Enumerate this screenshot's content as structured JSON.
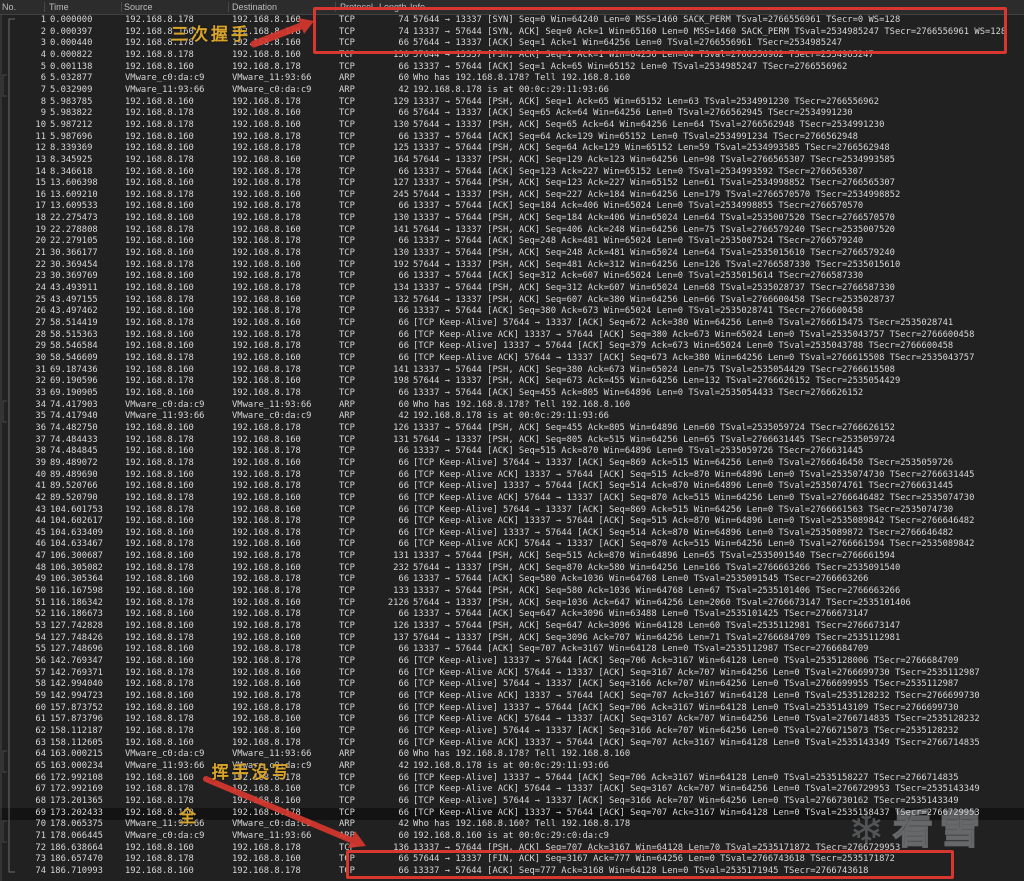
{
  "header": {
    "columns": [
      "No.",
      "Time",
      "Source",
      "Destination",
      "Protocol",
      "Length",
      "Info"
    ]
  },
  "selected_row_no": "69",
  "packets": [
    [
      "1",
      "0.000000",
      "192.168.8.178",
      "192.168.8.160",
      "TCP",
      "74",
      "57644 → 13337 [SYN] Seq=0 Win=64240 Len=0 MSS=1460 SACK_PERM TSval=2766556961 TSecr=0 WS=128"
    ],
    [
      "2",
      "0.000397",
      "192.168.8.160",
      "192.168.8.178",
      "TCP",
      "74",
      "13337 → 57644 [SYN, ACK] Seq=0 Ack=1 Win=65160 Len=0 MSS=1460 SACK_PERM TSval=2534985247 TSecr=2766556961 WS=128"
    ],
    [
      "3",
      "0.000440",
      "192.168.8.178",
      "192.168.8.160",
      "TCP",
      "66",
      "57644 → 13337 [ACK] Seq=1 Ack=1 Win=64256 Len=0 TSval=2766556961 TSecr=2534985247"
    ],
    [
      "4",
      "0.000822",
      "192.168.8.178",
      "192.168.8.160",
      "TCP",
      "130",
      "57644 → 13337 [PSH, ACK] Seq=1 Ack=1 Win=64256 Len=64 TSval=2766556962 TSecr=2534985247"
    ],
    [
      "5",
      "0.001138",
      "192.168.8.160",
      "192.168.8.178",
      "TCP",
      "66",
      "13337 → 57644 [ACK] Seq=1 Ack=65 Win=65152 Len=0 TSval=2534985247 TSecr=2766556962"
    ],
    [
      "6",
      "5.032877",
      "VMware_c0:da:c9",
      "VMware_11:93:66",
      "ARP",
      "60",
      "Who has 192.168.8.178? Tell 192.168.8.160"
    ],
    [
      "7",
      "5.032909",
      "VMware_11:93:66",
      "VMware_c0:da:c9",
      "ARP",
      "42",
      "192.168.8.178 is at 00:0c:29:11:93:66"
    ],
    [
      "8",
      "5.983785",
      "192.168.8.160",
      "192.168.8.178",
      "TCP",
      "129",
      "13337 → 57644 [PSH, ACK] Seq=1 Ack=65 Win=65152 Len=63 TSval=2534991230 TSecr=2766556962"
    ],
    [
      "9",
      "5.983822",
      "192.168.8.178",
      "192.168.8.160",
      "TCP",
      "66",
      "57644 → 13337 [ACK] Seq=65 Ack=64 Win=64256 Len=0 TSval=2766562945 TSecr=2534991230"
    ],
    [
      "10",
      "5.987212",
      "192.168.8.178",
      "192.168.8.160",
      "TCP",
      "130",
      "57644 → 13337 [PSH, ACK] Seq=65 Ack=64 Win=64256 Len=64 TSval=2766562948 TSecr=2534991230"
    ],
    [
      "11",
      "5.987696",
      "192.168.8.160",
      "192.168.8.178",
      "TCP",
      "66",
      "13337 → 57644 [ACK] Seq=64 Ack=129 Win=65152 Len=0 TSval=2534991234 TSecr=2766562948"
    ],
    [
      "12",
      "8.339369",
      "192.168.8.160",
      "192.168.8.178",
      "TCP",
      "125",
      "13337 → 57644 [PSH, ACK] Seq=64 Ack=129 Win=65152 Len=59 TSval=2534993585 TSecr=2766562948"
    ],
    [
      "13",
      "8.345925",
      "192.168.8.178",
      "192.168.8.160",
      "TCP",
      "164",
      "57644 → 13337 [PSH, ACK] Seq=129 Ack=123 Win=64256 Len=98 TSval=2766565307 TSecr=2534993585"
    ],
    [
      "14",
      "8.346618",
      "192.168.8.160",
      "192.168.8.178",
      "TCP",
      "66",
      "13337 → 57644 [ACK] Seq=123 Ack=227 Win=65152 Len=0 TSval=2534993592 TSecr=2766565307"
    ],
    [
      "15",
      "13.606398",
      "192.168.8.160",
      "192.168.8.178",
      "TCP",
      "127",
      "13337 → 57644 [PSH, ACK] Seq=123 Ack=227 Win=65152 Len=61 TSval=2534998852 TSecr=2766565307"
    ],
    [
      "16",
      "13.609210",
      "192.168.8.178",
      "192.168.8.160",
      "TCP",
      "245",
      "57644 → 13337 [PSH, ACK] Seq=227 Ack=184 Win=64256 Len=179 TSval=2766570570 TSecr=2534998852"
    ],
    [
      "17",
      "13.609533",
      "192.168.8.160",
      "192.168.8.178",
      "TCP",
      "66",
      "13337 → 57644 [ACK] Seq=184 Ack=406 Win=65024 Len=0 TSval=2534998855 TSecr=2766570570"
    ],
    [
      "18",
      "22.275473",
      "192.168.8.160",
      "192.168.8.178",
      "TCP",
      "130",
      "13337 → 57644 [PSH, ACK] Seq=184 Ack=406 Win=65024 Len=64 TSval=2535007520 TSecr=2766570570"
    ],
    [
      "19",
      "22.278808",
      "192.168.8.178",
      "192.168.8.160",
      "TCP",
      "141",
      "57644 → 13337 [PSH, ACK] Seq=406 Ack=248 Win=64256 Len=75 TSval=2766579240 TSecr=2535007520"
    ],
    [
      "20",
      "22.279105",
      "192.168.8.160",
      "192.168.8.178",
      "TCP",
      "66",
      "13337 → 57644 [ACK] Seq=248 Ack=481 Win=65024 Len=0 TSval=2535007524 TSecr=2766579240"
    ],
    [
      "21",
      "30.366177",
      "192.168.8.160",
      "192.168.8.178",
      "TCP",
      "130",
      "13337 → 57644 [PSH, ACK] Seq=248 Ack=481 Win=65024 Len=64 TSval=2535015610 TSecr=2766579240"
    ],
    [
      "22",
      "30.369454",
      "192.168.8.178",
      "192.168.8.160",
      "TCP",
      "192",
      "57644 → 13337 [PSH, ACK] Seq=481 Ack=312 Win=64256 Len=126 TSval=2766587330 TSecr=2535015610"
    ],
    [
      "23",
      "30.369769",
      "192.168.8.160",
      "192.168.8.178",
      "TCP",
      "66",
      "13337 → 57644 [ACK] Seq=312 Ack=607 Win=65024 Len=0 TSval=2535015614 TSecr=2766587330"
    ],
    [
      "24",
      "43.493911",
      "192.168.8.160",
      "192.168.8.178",
      "TCP",
      "134",
      "13337 → 57644 [PSH, ACK] Seq=312 Ack=607 Win=65024 Len=68 TSval=2535028737 TSecr=2766587330"
    ],
    [
      "25",
      "43.497155",
      "192.168.8.178",
      "192.168.8.160",
      "TCP",
      "132",
      "57644 → 13337 [PSH, ACK] Seq=607 Ack=380 Win=64256 Len=66 TSval=2766600458 TSecr=2535028737"
    ],
    [
      "26",
      "43.497462",
      "192.168.8.160",
      "192.168.8.178",
      "TCP",
      "66",
      "13337 → 57644 [ACK] Seq=380 Ack=673 Win=65024 Len=0 TSval=2535028741 TSecr=2766600458"
    ],
    [
      "27",
      "58.514419",
      "192.168.8.178",
      "192.168.8.160",
      "TCP",
      "66",
      "[TCP Keep-Alive] 57644 → 13337 [ACK] Seq=672 Ack=380 Win=64256 Len=0 TSval=2766615475 TSecr=2535028741"
    ],
    [
      "28",
      "58.515363",
      "192.168.8.160",
      "192.168.8.178",
      "TCP",
      "66",
      "[TCP Keep-Alive ACK] 13337 → 57644 [ACK] Seq=380 Ack=673 Win=65024 Len=0 TSval=2535043757 TSecr=2766600458"
    ],
    [
      "29",
      "58.546584",
      "192.168.8.160",
      "192.168.8.178",
      "TCP",
      "66",
      "[TCP Keep-Alive] 13337 → 57644 [ACK] Seq=379 Ack=673 Win=65024 Len=0 TSval=2535043788 TSecr=2766600458"
    ],
    [
      "30",
      "58.546609",
      "192.168.8.178",
      "192.168.8.160",
      "TCP",
      "66",
      "[TCP Keep-Alive ACK] 57644 → 13337 [ACK] Seq=673 Ack=380 Win=64256 Len=0 TSval=2766615508 TSecr=2535043757"
    ],
    [
      "31",
      "69.187436",
      "192.168.8.160",
      "192.168.8.178",
      "TCP",
      "141",
      "13337 → 57644 [PSH, ACK] Seq=380 Ack=673 Win=65024 Len=75 TSval=2535054429 TSecr=2766615508"
    ],
    [
      "32",
      "69.190596",
      "192.168.8.178",
      "192.168.8.160",
      "TCP",
      "198",
      "57644 → 13337 [PSH, ACK] Seq=673 Ack=455 Win=64256 Len=132 TSval=2766626152 TSecr=2535054429"
    ],
    [
      "33",
      "69.190905",
      "192.168.8.160",
      "192.168.8.178",
      "TCP",
      "66",
      "13337 → 57644 [ACK] Seq=455 Ack=805 Win=64896 Len=0 TSval=2535054433 TSecr=2766626152"
    ],
    [
      "34",
      "74.417903",
      "VMware_c0:da:c9",
      "VMware_11:93:66",
      "ARP",
      "60",
      "Who has 192.168.8.178? Tell 192.168.8.160"
    ],
    [
      "35",
      "74.417940",
      "VMware_11:93:66",
      "VMware_c0:da:c9",
      "ARP",
      "42",
      "192.168.8.178 is at 00:0c:29:11:93:66"
    ],
    [
      "36",
      "74.482750",
      "192.168.8.160",
      "192.168.8.178",
      "TCP",
      "126",
      "13337 → 57644 [PSH, ACK] Seq=455 Ack=805 Win=64896 Len=60 TSval=2535059724 TSecr=2766626152"
    ],
    [
      "37",
      "74.484433",
      "192.168.8.178",
      "192.168.8.160",
      "TCP",
      "131",
      "57644 → 13337 [PSH, ACK] Seq=805 Ack=515 Win=64256 Len=65 TSval=2766631445 TSecr=2535059724"
    ],
    [
      "38",
      "74.484845",
      "192.168.8.160",
      "192.168.8.178",
      "TCP",
      "66",
      "13337 → 57644 [ACK] Seq=515 Ack=870 Win=64896 Len=0 TSval=2535059726 TSecr=2766631445"
    ],
    [
      "39",
      "89.489072",
      "192.168.8.178",
      "192.168.8.160",
      "TCP",
      "66",
      "[TCP Keep-Alive] 57644 → 13337 [ACK] Seq=869 Ack=515 Win=64256 Len=0 TSval=2766646450 TSecr=2535059726"
    ],
    [
      "40",
      "89.489690",
      "192.168.8.160",
      "192.168.8.178",
      "TCP",
      "66",
      "[TCP Keep-Alive ACK] 13337 → 57644 [ACK] Seq=515 Ack=870 Win=64896 Len=0 TSval=2535074730 TSecr=2766631445"
    ],
    [
      "41",
      "89.520766",
      "192.168.8.160",
      "192.168.8.178",
      "TCP",
      "66",
      "[TCP Keep-Alive] 13337 → 57644 [ACK] Seq=514 Ack=870 Win=64896 Len=0 TSval=2535074761 TSecr=2766631445"
    ],
    [
      "42",
      "89.520790",
      "192.168.8.178",
      "192.168.8.160",
      "TCP",
      "66",
      "[TCP Keep-Alive ACK] 57644 → 13337 [ACK] Seq=870 Ack=515 Win=64256 Len=0 TSval=2766646482 TSecr=2535074730"
    ],
    [
      "43",
      "104.601753",
      "192.168.8.178",
      "192.168.8.160",
      "TCP",
      "66",
      "[TCP Keep-Alive] 57644 → 13337 [ACK] Seq=869 Ack=515 Win=64256 Len=0 TSval=2766661563 TSecr=2535074730"
    ],
    [
      "44",
      "104.602617",
      "192.168.8.160",
      "192.168.8.178",
      "TCP",
      "66",
      "[TCP Keep-Alive ACK] 13337 → 57644 [ACK] Seq=515 Ack=870 Win=64896 Len=0 TSval=2535089842 TSecr=2766646482"
    ],
    [
      "45",
      "104.633409",
      "192.168.8.160",
      "192.168.8.178",
      "TCP",
      "66",
      "[TCP Keep-Alive] 13337 → 57644 [ACK] Seq=514 Ack=870 Win=64896 Len=0 TSval=2535089872 TSecr=2766646482"
    ],
    [
      "46",
      "104.633467",
      "192.168.8.178",
      "192.168.8.160",
      "TCP",
      "66",
      "[TCP Keep-Alive ACK] 57644 → 13337 [ACK] Seq=870 Ack=515 Win=64256 Len=0 TSval=2766661594 TSecr=2535089842"
    ],
    [
      "47",
      "106.300687",
      "192.168.8.160",
      "192.168.8.178",
      "TCP",
      "131",
      "13337 → 57644 [PSH, ACK] Seq=515 Ack=870 Win=64896 Len=65 TSval=2535091540 TSecr=2766661594"
    ],
    [
      "48",
      "106.305082",
      "192.168.8.178",
      "192.168.8.160",
      "TCP",
      "232",
      "57644 → 13337 [PSH, ACK] Seq=870 Ack=580 Win=64256 Len=166 TSval=2766663266 TSecr=2535091540"
    ],
    [
      "49",
      "106.305364",
      "192.168.8.160",
      "192.168.8.178",
      "TCP",
      "66",
      "13337 → 57644 [ACK] Seq=580 Ack=1036 Win=64768 Len=0 TSval=2535091545 TSecr=2766663266"
    ],
    [
      "50",
      "116.167598",
      "192.168.8.160",
      "192.168.8.178",
      "TCP",
      "133",
      "13337 → 57644 [PSH, ACK] Seq=580 Ack=1036 Win=64768 Len=67 TSval=2535101406 TSecr=2766663266"
    ],
    [
      "51",
      "116.186342",
      "192.168.8.178",
      "192.168.8.160",
      "TCP",
      "2126",
      "57644 → 13337 [PSH, ACK] Seq=1036 Ack=647 Win=64256 Len=2060 TSval=2766673147 TSecr=2535101406"
    ],
    [
      "52",
      "116.186673",
      "192.168.8.160",
      "192.168.8.178",
      "TCP",
      "66",
      "13337 → 57644 [ACK] Seq=647 Ack=3096 Win=63488 Len=0 TSval=2535101425 TSecr=2766673147"
    ],
    [
      "53",
      "127.742828",
      "192.168.8.160",
      "192.168.8.178",
      "TCP",
      "126",
      "13337 → 57644 [PSH, ACK] Seq=647 Ack=3096 Win=64128 Len=60 TSval=2535112981 TSecr=2766673147"
    ],
    [
      "54",
      "127.748426",
      "192.168.8.178",
      "192.168.8.160",
      "TCP",
      "137",
      "57644 → 13337 [PSH, ACK] Seq=3096 Ack=707 Win=64256 Len=71 TSval=2766684709 TSecr=2535112981"
    ],
    [
      "55",
      "127.748696",
      "192.168.8.160",
      "192.168.8.178",
      "TCP",
      "66",
      "13337 → 57644 [ACK] Seq=707 Ack=3167 Win=64128 Len=0 TSval=2535112987 TSecr=2766684709"
    ],
    [
      "56",
      "142.769347",
      "192.168.8.160",
      "192.168.8.178",
      "TCP",
      "66",
      "[TCP Keep-Alive] 13337 → 57644 [ACK] Seq=706 Ack=3167 Win=64128 Len=0 TSval=2535128006 TSecr=2766684709"
    ],
    [
      "57",
      "142.769371",
      "192.168.8.178",
      "192.168.8.160",
      "TCP",
      "66",
      "[TCP Keep-Alive ACK] 57644 → 13337 [ACK] Seq=3167 Ack=707 Win=64256 Len=0 TSval=2766699730 TSecr=2535112987"
    ],
    [
      "58",
      "142.994040",
      "192.168.8.178",
      "192.168.8.160",
      "TCP",
      "66",
      "[TCP Keep-Alive] 57644 → 13337 [ACK] Seq=3166 Ack=707 Win=64256 Len=0 TSval=2766699955 TSecr=2535112987"
    ],
    [
      "59",
      "142.994723",
      "192.168.8.160",
      "192.168.8.178",
      "TCP",
      "66",
      "[TCP Keep-Alive ACK] 13337 → 57644 [ACK] Seq=707 Ack=3167 Win=64128 Len=0 TSval=2535128232 TSecr=2766699730"
    ],
    [
      "60",
      "157.873752",
      "192.168.8.160",
      "192.168.8.178",
      "TCP",
      "66",
      "[TCP Keep-Alive] 13337 → 57644 [ACK] Seq=706 Ack=3167 Win=64128 Len=0 TSval=2535143109 TSecr=2766699730"
    ],
    [
      "61",
      "157.873796",
      "192.168.8.178",
      "192.168.8.160",
      "TCP",
      "66",
      "[TCP Keep-Alive ACK] 57644 → 13337 [ACK] Seq=3167 Ack=707 Win=64256 Len=0 TSval=2766714835 TSecr=2535128232"
    ],
    [
      "62",
      "158.112187",
      "192.168.8.178",
      "192.168.8.160",
      "TCP",
      "66",
      "[TCP Keep-Alive] 57644 → 13337 [ACK] Seq=3166 Ack=707 Win=64256 Len=0 TSval=2766715073 TSecr=2535128232"
    ],
    [
      "63",
      "158.112605",
      "192.168.8.160",
      "192.168.8.178",
      "TCP",
      "66",
      "[TCP Keep-Alive ACK] 13337 → 57644 [ACK] Seq=707 Ack=3167 Win=64128 Len=0 TSval=2535143349 TSecr=2766714835"
    ],
    [
      "64",
      "163.000215",
      "VMware_c0:da:c9",
      "VMware_11:93:66",
      "ARP",
      "60",
      "Who has 192.168.8.178? Tell 192.168.8.160"
    ],
    [
      "65",
      "163.000234",
      "VMware_11:93:66",
      "VMware_c0:da:c9",
      "ARP",
      "42",
      "192.168.8.178 is at 00:0c:29:11:93:66"
    ],
    [
      "66",
      "172.992108",
      "192.168.8.160",
      "192.168.8.178",
      "TCP",
      "66",
      "[TCP Keep-Alive] 13337 → 57644 [ACK] Seq=706 Ack=3167 Win=64128 Len=0 TSval=2535158227 TSecr=2766714835"
    ],
    [
      "67",
      "172.992169",
      "192.168.8.178",
      "192.168.8.160",
      "TCP",
      "66",
      "[TCP Keep-Alive ACK] 57644 → 13337 [ACK] Seq=3167 Ack=707 Win=64256 Len=0 TSval=2766729953 TSecr=2535143349"
    ],
    [
      "68",
      "173.201365",
      "192.168.8.178",
      "192.168.8.160",
      "TCP",
      "66",
      "[TCP Keep-Alive] 57644 → 13337 [ACK] Seq=3166 Ack=707 Win=64256 Len=0 TSval=2766730162 TSecr=2535143349"
    ],
    [
      "69",
      "173.202433",
      "192.168.8.160",
      "192.168.8.178",
      "TCP",
      "66",
      "[TCP Keep-Alive ACK] 13337 → 57644 [ACK] Seq=707 Ack=3167 Win=64128 Len=0 TSval=2535158437 TSecr=2766729953"
    ],
    [
      "70",
      "178.065375",
      "VMware_11:93:66",
      "VMware_c0:da:c9",
      "ARP",
      "42",
      "Who has 192.168.8.160? Tell 192.168.8.178"
    ],
    [
      "71",
      "178.066445",
      "VMware_c0:da:c9",
      "VMware_11:93:66",
      "ARP",
      "60",
      "192.168.8.160 is at 00:0c:29:c0:da:c9"
    ],
    [
      "72",
      "186.638664",
      "192.168.8.160",
      "192.168.8.178",
      "TCP",
      "136",
      "13337 → 57644 [PSH, ACK] Seq=707 Ack=3167 Win=64128 Len=70 TSval=2535171872 TSecr=2766729953"
    ],
    [
      "73",
      "186.657470",
      "192.168.8.178",
      "192.168.8.160",
      "TCP",
      "66",
      "57644 → 13337 [FIN, ACK] Seq=3167 Ack=777 Win=64256 Len=0 TSval=2766743618 TSecr=2535171872"
    ],
    [
      "74",
      "186.710993",
      "192.168.8.160",
      "192.168.8.178",
      "TCP",
      "66",
      "13337 → 57644 [ACK] Seq=777 Ack=3168 Win=64128 Len=0 TSval=2535171945 TSecr=2766743618"
    ]
  ],
  "annotations": {
    "handshake_label": "三次握手",
    "teardown_label": "挥手没写全",
    "teardown_lines": [
      "挥手没写",
      "全"
    ],
    "label_color": "#d8a429",
    "box_color": "#d7372e"
  },
  "watermark": {
    "brand_text": "看雪",
    "icon": "snowflake-icon"
  }
}
